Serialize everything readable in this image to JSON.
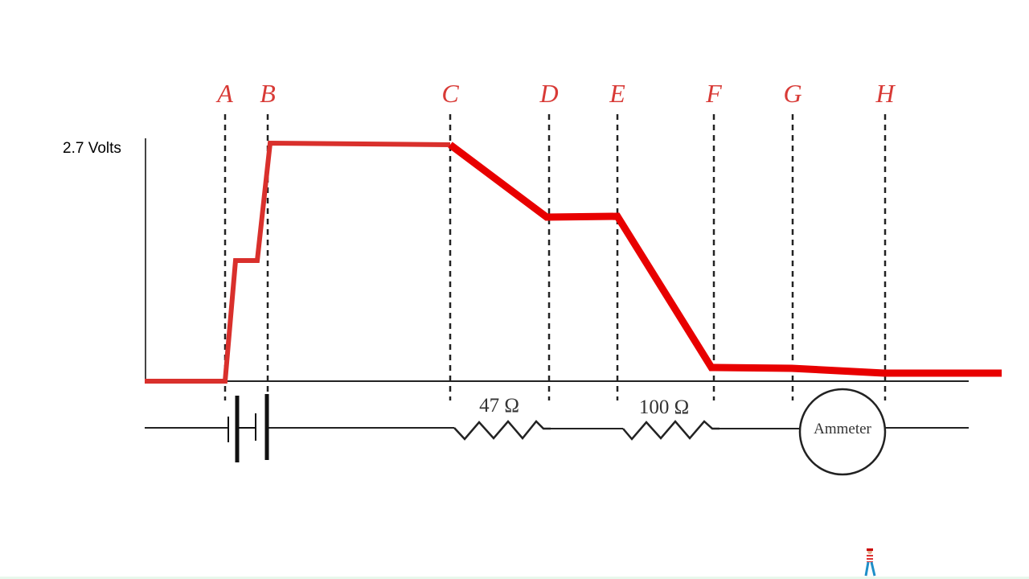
{
  "voltage_label": "2.7 Volts",
  "points": [
    "A",
    "B",
    "C",
    "D",
    "E",
    "F",
    "G",
    "H"
  ],
  "resistors": [
    "47 Ω",
    "100 Ω"
  ],
  "meter_label": "Ammeter",
  "colors": {
    "potential_line": "#e00000",
    "point_labels": "#d83a36",
    "circuit": "#222222"
  },
  "icons": [
    "battery-icon",
    "resistor-icon",
    "ammeter-icon",
    "walking-character-icon"
  ]
}
